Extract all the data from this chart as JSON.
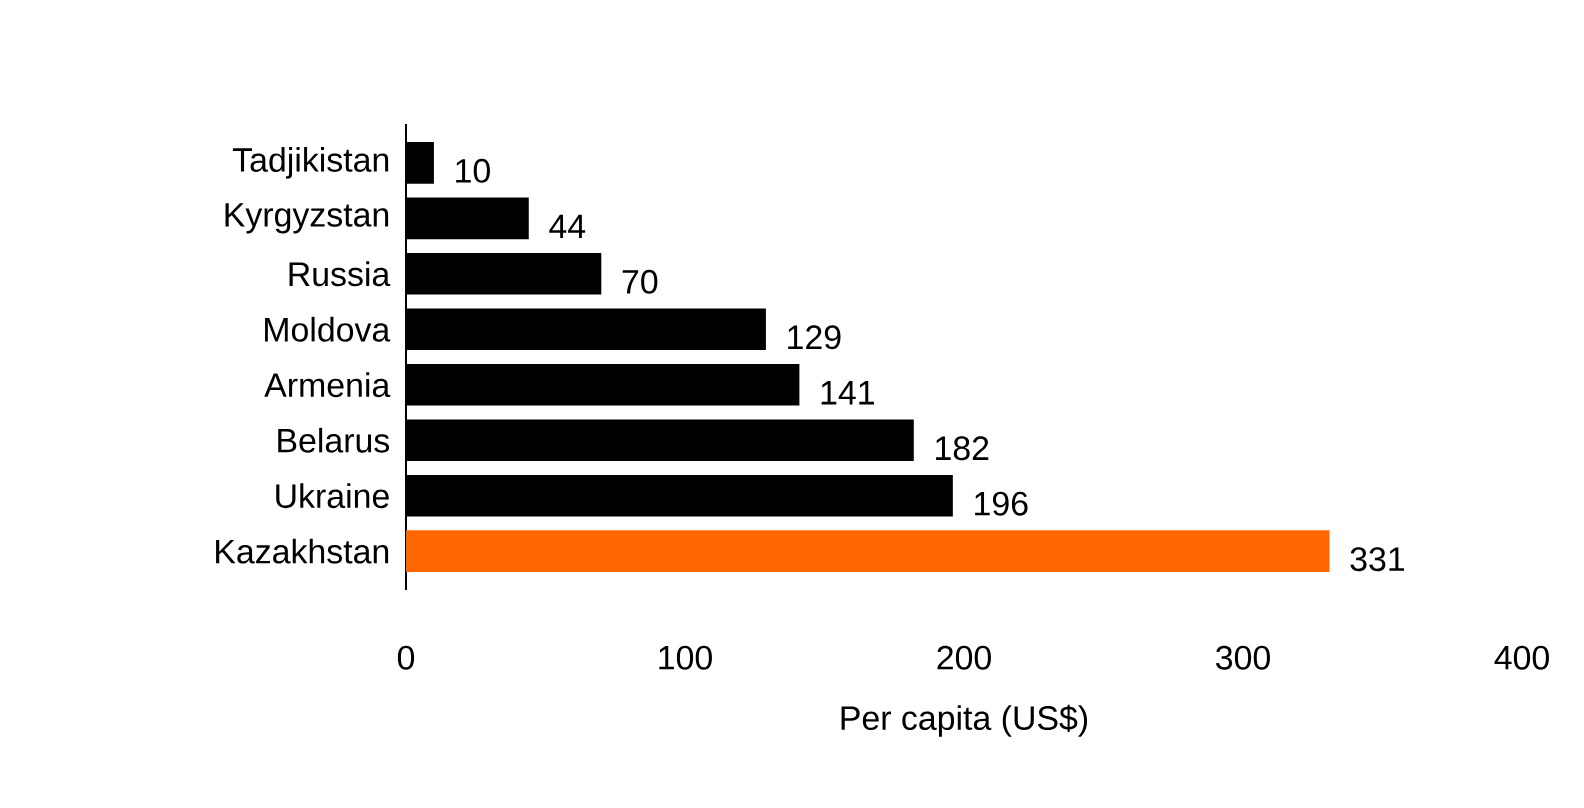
{
  "chart_data": {
    "type": "bar",
    "orientation": "horizontal",
    "xlabel": "Per capita (US$)",
    "categories": [
      "Tadjikistan",
      "Kyrgyzstan",
      "Russia",
      "Moldova",
      "Armenia",
      "Belarus",
      "Ukraine",
      "Kazakhstan"
    ],
    "values": [
      10,
      44,
      70,
      129,
      141,
      182,
      196,
      331
    ],
    "colors": [
      "#000000",
      "#000000",
      "#000000",
      "#000000",
      "#000000",
      "#000000",
      "#000000",
      "#ff6600"
    ],
    "xlim": [
      0,
      400
    ],
    "xticks": [
      0,
      100,
      200,
      300,
      400
    ],
    "data_labels": true
  }
}
